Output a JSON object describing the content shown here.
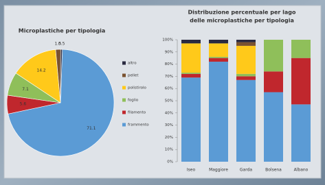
{
  "chart_data": [
    {
      "type": "pie",
      "title": "Microplastiche per tipologia",
      "values": [
        71.1,
        5.6,
        7.1,
        14.2,
        1.5,
        0.5
      ],
      "colors": [
        "#5b9bd5",
        "#c0272d",
        "#8fbf5a",
        "#ffc91a",
        "#7a5230",
        "#2a2a40"
      ]
    },
    {
      "type": "stacked_bar",
      "title": [
        "Distribuzione percentuale per lago",
        "delle microplastiche per tipologia"
      ],
      "categories": [
        "Iseo",
        "Maggiore",
        "Garda",
        "Bolsena",
        "Albano"
      ],
      "series": [
        {
          "name": "frammento",
          "color": "#5b9bd5",
          "values": [
            69,
            82,
            67,
            57,
            47
          ]
        },
        {
          "name": "filamento",
          "color": "#c0272d",
          "values": [
            3,
            3,
            3,
            17,
            38
          ]
        },
        {
          "name": "foglio",
          "color": "#8fbf5a",
          "values": [
            1,
            1,
            2,
            26,
            15
          ]
        },
        {
          "name": "polistirolo",
          "color": "#ffc91a",
          "values": [
            24,
            11,
            23,
            0,
            0
          ]
        },
        {
          "name": "pellet",
          "color": "#7a5230",
          "values": [
            0,
            0,
            3,
            0,
            0
          ]
        },
        {
          "name": "altro",
          "color": "#2a2a40",
          "values": [
            3,
            3,
            2,
            0,
            0
          ]
        }
      ],
      "ylim": [
        0,
        100
      ],
      "yticks": [
        {
          "value": 0,
          "label": "0%"
        },
        {
          "value": 10,
          "label": "10%"
        },
        {
          "value": 20,
          "label": "20%"
        },
        {
          "value": 30,
          "label": "30%"
        },
        {
          "value": 40,
          "label": "40%"
        },
        {
          "value": 50,
          "label": "50%"
        },
        {
          "value": 60,
          "label": "60%"
        },
        {
          "value": 70,
          "label": "70%"
        },
        {
          "value": 80,
          "label": "80%"
        },
        {
          "value": 90,
          "label": "90%"
        },
        {
          "value": 100,
          "label": "100%"
        }
      ]
    }
  ]
}
